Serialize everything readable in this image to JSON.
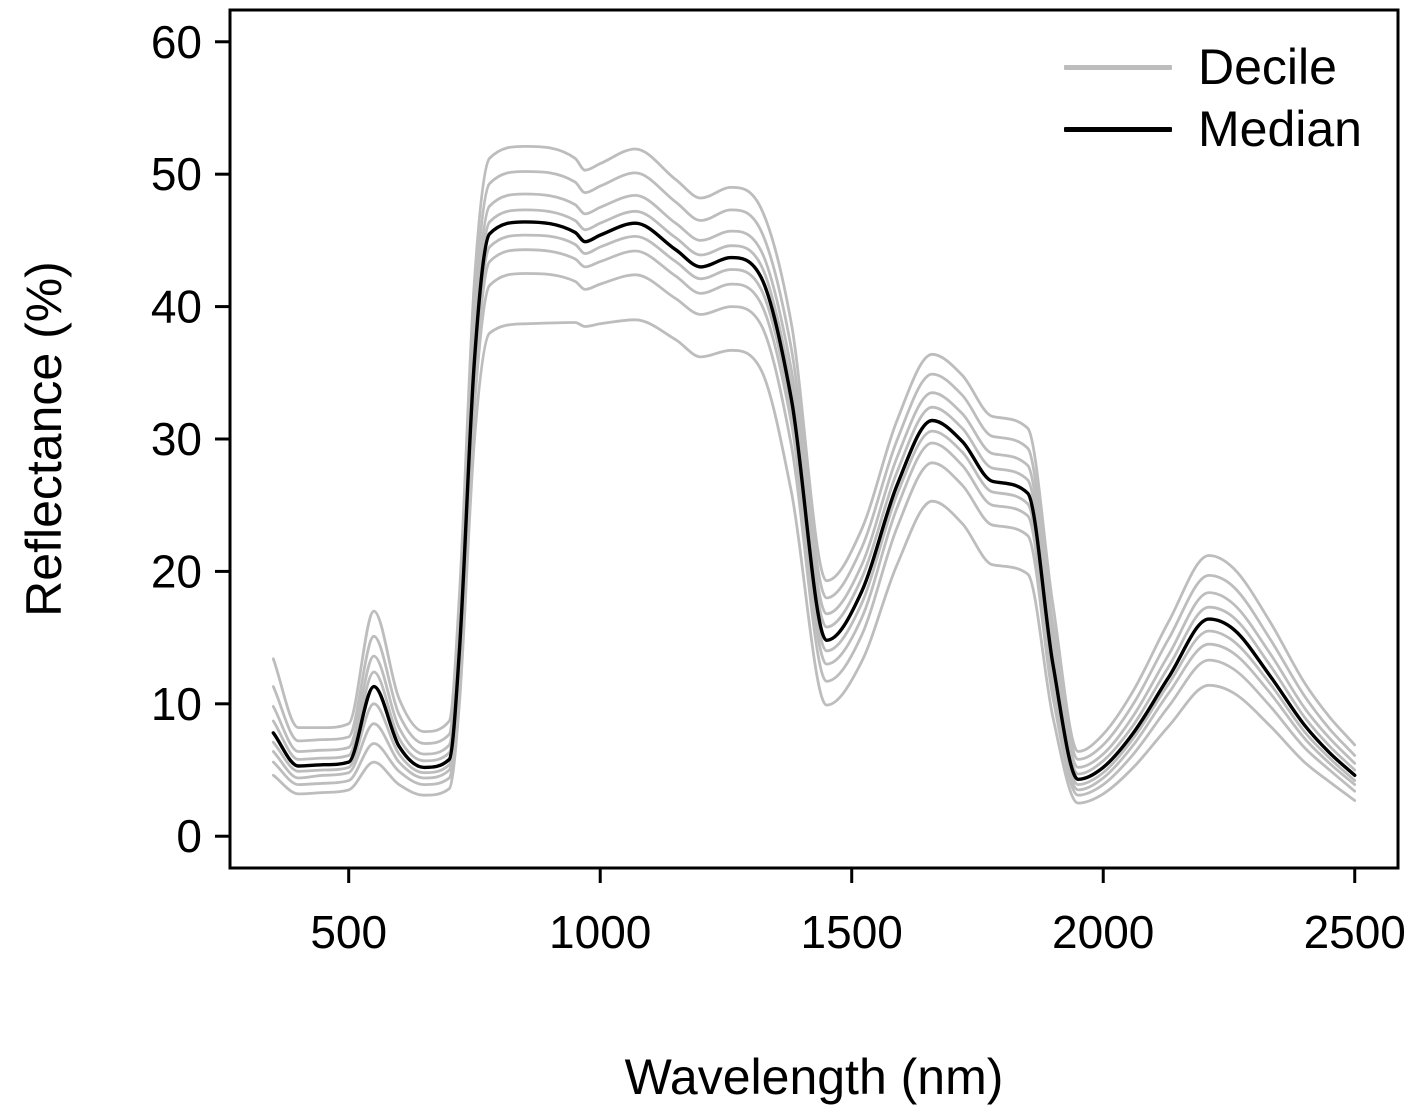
{
  "chart_data": {
    "type": "line",
    "title": "",
    "xlabel": "Wavelength (nm)",
    "ylabel": "Reflectance (%)",
    "xlim": [
      350,
      2500
    ],
    "ylim": [
      0,
      60
    ],
    "x_ticks": [
      500,
      1000,
      1500,
      2000,
      2500
    ],
    "y_ticks": [
      0,
      10,
      20,
      30,
      40,
      50,
      60
    ],
    "grid": false,
    "legend": {
      "position": "top-right",
      "entries": [
        {
          "label": "Decile",
          "color": "#bdbdbd"
        },
        {
          "label": "Median",
          "color": "#000000"
        }
      ]
    },
    "x": [
      350,
      400,
      450,
      500,
      550,
      600,
      650,
      700,
      720,
      750,
      780,
      850,
      950,
      970,
      1000,
      1070,
      1150,
      1200,
      1260,
      1320,
      1380,
      1450,
      1520,
      1590,
      1660,
      1720,
      1780,
      1850,
      1900,
      1950,
      2000,
      2060,
      2130,
      2210,
      2260,
      2330,
      2400,
      2450,
      2500
    ],
    "series": [
      {
        "name": "decile_10",
        "role": "decile",
        "color": "#bdbdbd",
        "values": [
          4.6,
          3.2,
          3.3,
          3.5,
          5.6,
          3.9,
          3.1,
          3.6,
          10.0,
          30.0,
          38.0,
          38.7,
          38.8,
          38.5,
          38.7,
          39.0,
          37.5,
          36.2,
          36.7,
          35.2,
          26.0,
          9.9,
          13.2,
          20.5,
          25.3,
          23.6,
          20.5,
          19.8,
          9.0,
          2.5,
          3.2,
          5.2,
          8.3,
          11.4,
          10.8,
          8.4,
          5.6,
          4.1,
          2.7
        ]
      },
      {
        "name": "decile_20",
        "role": "decile",
        "color": "#bdbdbd",
        "values": [
          5.6,
          3.9,
          4.0,
          4.2,
          7.0,
          4.9,
          3.9,
          4.4,
          11.5,
          32.5,
          41.6,
          42.5,
          41.9,
          41.3,
          41.7,
          42.4,
          40.6,
          39.4,
          40.0,
          38.6,
          29.5,
          11.7,
          15.2,
          23.3,
          28.2,
          26.5,
          23.5,
          22.7,
          10.5,
          3.1,
          3.9,
          6.2,
          9.8,
          13.3,
          12.6,
          9.9,
          6.7,
          5.0,
          3.4
        ]
      },
      {
        "name": "decile_30",
        "role": "decile",
        "color": "#bdbdbd",
        "values": [
          6.4,
          4.4,
          4.6,
          4.8,
          8.5,
          5.6,
          4.4,
          5.0,
          12.5,
          34.0,
          43.4,
          44.3,
          43.6,
          43.0,
          43.4,
          44.2,
          42.3,
          41.0,
          41.7,
          40.2,
          31.2,
          13.0,
          16.5,
          24.8,
          29.7,
          28.0,
          25.0,
          24.2,
          11.5,
          3.5,
          4.4,
          6.9,
          10.8,
          14.5,
          13.8,
          10.9,
          7.4,
          5.5,
          3.9
        ]
      },
      {
        "name": "decile_40",
        "role": "decile",
        "color": "#bdbdbd",
        "values": [
          7.1,
          4.9,
          5.0,
          5.2,
          10.0,
          6.2,
          4.8,
          5.4,
          13.3,
          35.0,
          44.5,
          45.4,
          44.7,
          44.0,
          44.5,
          45.3,
          43.4,
          42.1,
          42.8,
          41.3,
          32.2,
          14.0,
          17.6,
          25.8,
          30.6,
          29.0,
          26.0,
          25.1,
          12.3,
          3.9,
          4.8,
          7.4,
          11.5,
          15.5,
          14.7,
          11.6,
          7.9,
          5.9,
          4.2
        ]
      },
      {
        "name": "decile_60",
        "role": "decile",
        "color": "#bdbdbd",
        "values": [
          8.7,
          5.8,
          5.9,
          6.1,
          12.4,
          7.4,
          5.7,
          6.3,
          14.8,
          37.0,
          46.4,
          47.3,
          46.5,
          45.8,
          46.3,
          47.2,
          45.2,
          43.9,
          44.6,
          43.1,
          34.0,
          15.8,
          19.5,
          27.5,
          32.4,
          30.8,
          27.8,
          26.9,
          13.8,
          4.7,
          5.7,
          8.4,
          12.8,
          17.3,
          16.5,
          13.0,
          9.0,
          6.8,
          5.0
        ]
      },
      {
        "name": "decile_70",
        "role": "decile",
        "color": "#bdbdbd",
        "values": [
          9.8,
          6.4,
          6.5,
          6.7,
          13.6,
          8.2,
          6.2,
          6.9,
          15.7,
          38.3,
          47.6,
          48.5,
          47.7,
          47.0,
          47.5,
          48.4,
          46.3,
          45.0,
          45.7,
          44.2,
          35.2,
          16.8,
          20.5,
          28.6,
          33.5,
          31.9,
          28.9,
          28.0,
          14.8,
          5.2,
          6.2,
          9.1,
          13.7,
          18.4,
          17.5,
          13.9,
          9.7,
          7.4,
          5.5
        ]
      },
      {
        "name": "decile_80",
        "role": "decile",
        "color": "#bdbdbd",
        "values": [
          11.3,
          7.2,
          7.3,
          7.5,
          15.1,
          9.2,
          7.0,
          7.7,
          16.8,
          40.0,
          49.3,
          50.2,
          49.4,
          48.6,
          49.1,
          50.1,
          47.9,
          46.5,
          47.3,
          45.7,
          36.8,
          18.0,
          21.8,
          29.9,
          34.9,
          33.3,
          30.2,
          29.3,
          16.0,
          5.8,
          6.9,
          10.0,
          14.9,
          19.7,
          18.8,
          15.0,
          10.6,
          8.1,
          6.1
        ]
      },
      {
        "name": "decile_90",
        "role": "decile",
        "color": "#bdbdbd",
        "values": [
          13.4,
          8.2,
          8.2,
          8.5,
          17.0,
          10.4,
          7.9,
          8.7,
          18.2,
          42.0,
          51.2,
          52.1,
          51.2,
          50.3,
          50.8,
          51.9,
          49.6,
          48.2,
          49.0,
          47.4,
          38.7,
          19.3,
          23.2,
          31.4,
          36.4,
          34.8,
          31.7,
          30.8,
          17.5,
          6.4,
          7.7,
          11.0,
          16.2,
          21.2,
          20.2,
          16.3,
          11.6,
          9.0,
          6.9
        ]
      },
      {
        "name": "median",
        "role": "median",
        "color": "#000000",
        "values": [
          7.8,
          5.3,
          5.4,
          5.6,
          11.3,
          6.8,
          5.2,
          5.8,
          14.0,
          36.0,
          45.5,
          46.4,
          45.6,
          44.9,
          45.4,
          46.3,
          44.3,
          43.0,
          43.7,
          42.2,
          33.0,
          14.8,
          18.5,
          26.5,
          31.4,
          29.8,
          26.8,
          25.9,
          13.0,
          4.3,
          5.2,
          7.8,
          12.0,
          16.4,
          15.6,
          12.2,
          8.4,
          6.3,
          4.6
        ]
      }
    ]
  },
  "colors": {
    "background": "#ffffff",
    "axis": "#000000"
  }
}
